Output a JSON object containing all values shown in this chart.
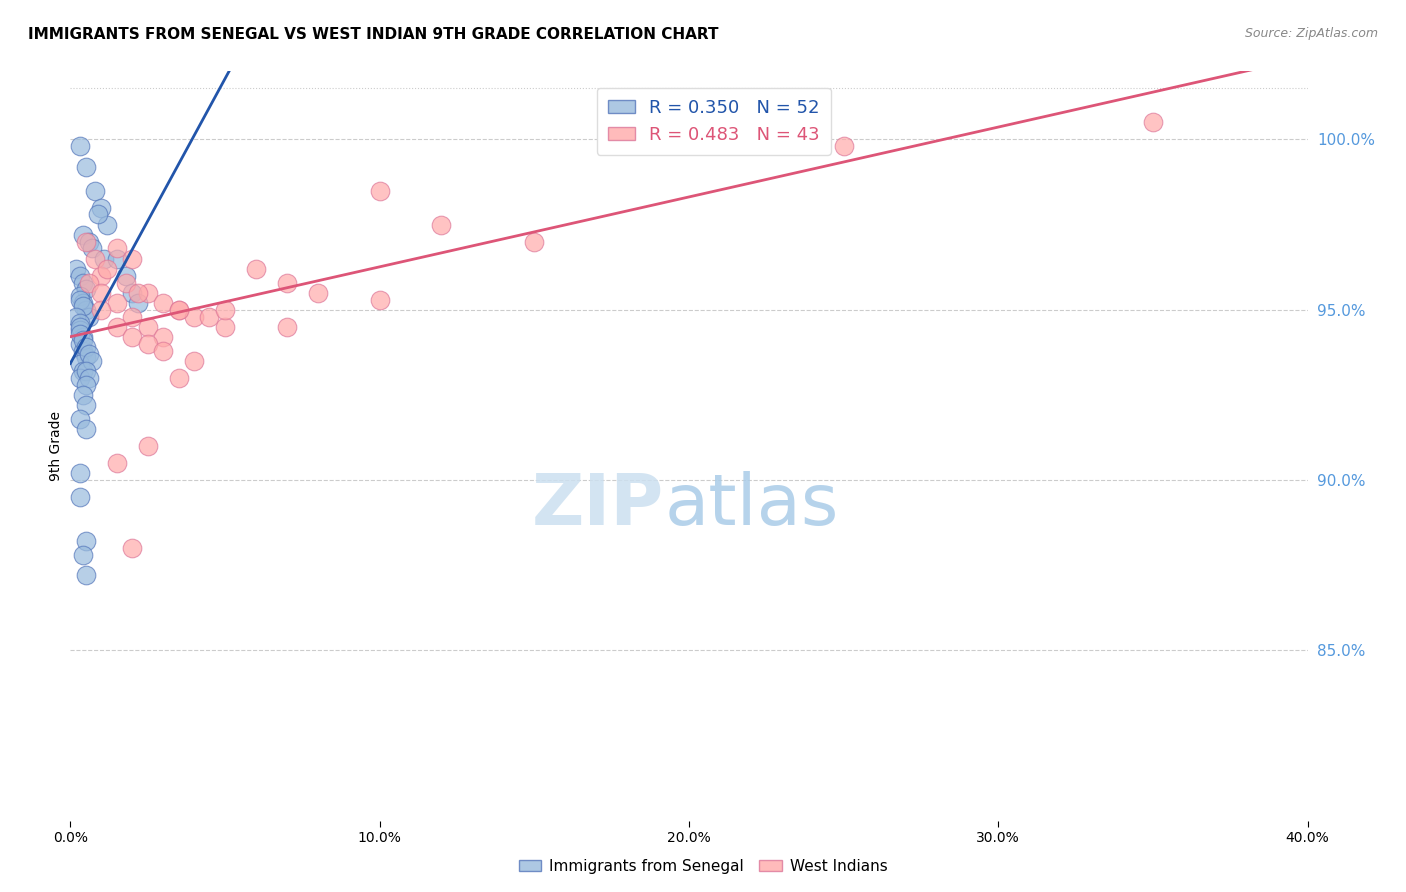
{
  "title": "IMMIGRANTS FROM SENEGAL VS WEST INDIAN 9TH GRADE CORRELATION CHART",
  "source": "Source: ZipAtlas.com",
  "ylabel": "9th Grade",
  "watermark_zip": "ZIP",
  "watermark_atlas": "atlas",
  "xmin": 0.0,
  "xmax": 40.0,
  "ymin": 80.0,
  "ymax": 102.0,
  "yticks": [
    85.0,
    90.0,
    95.0,
    100.0
  ],
  "xticks": [
    0.0,
    10.0,
    20.0,
    30.0,
    40.0
  ],
  "xtick_labels": [
    "0.0%",
    "10.0%",
    "20.0%",
    "30.0%",
    "40.0%"
  ],
  "legend_blue_r": 0.35,
  "legend_blue_n": 52,
  "legend_pink_r": 0.483,
  "legend_pink_n": 43,
  "blue_scatter_x": [
    0.3,
    0.5,
    0.8,
    1.0,
    1.2,
    0.4,
    0.6,
    0.7,
    0.9,
    1.1,
    0.2,
    0.3,
    0.4,
    0.5,
    0.3,
    0.4,
    0.5,
    0.6,
    0.3,
    0.4,
    0.2,
    0.3,
    0.3,
    0.4,
    0.3,
    0.4,
    0.5,
    0.3,
    0.4,
    0.3,
    0.3,
    0.3,
    0.4,
    0.5,
    0.6,
    0.7,
    1.5,
    1.8,
    2.0,
    2.2,
    0.5,
    0.6,
    0.5,
    0.4,
    0.5,
    0.3,
    0.5,
    0.3,
    0.3,
    0.5,
    0.4,
    0.5
  ],
  "blue_scatter_y": [
    99.8,
    99.2,
    98.5,
    98.0,
    97.5,
    97.2,
    97.0,
    96.8,
    97.8,
    96.5,
    96.2,
    96.0,
    95.8,
    95.6,
    95.4,
    95.2,
    95.0,
    94.8,
    95.3,
    95.1,
    94.8,
    94.6,
    94.4,
    94.2,
    94.0,
    93.8,
    93.6,
    93.4,
    93.2,
    93.0,
    94.5,
    94.3,
    94.1,
    93.9,
    93.7,
    93.5,
    96.5,
    96.0,
    95.5,
    95.2,
    93.2,
    93.0,
    92.8,
    92.5,
    92.2,
    91.8,
    91.5,
    90.2,
    89.5,
    88.2,
    87.8,
    87.2
  ],
  "pink_scatter_x": [
    0.5,
    0.8,
    1.0,
    1.2,
    1.5,
    2.0,
    2.5,
    3.0,
    3.5,
    4.0,
    5.0,
    6.0,
    7.0,
    8.0,
    10.0,
    12.0,
    15.0,
    20.0,
    25.0,
    35.0,
    0.6,
    1.0,
    1.5,
    2.0,
    2.5,
    3.0,
    1.8,
    2.2,
    3.5,
    4.5,
    1.0,
    1.5,
    2.0,
    2.5,
    3.0,
    4.0,
    5.0,
    7.0,
    10.0,
    3.5,
    2.5,
    1.5,
    2.0
  ],
  "pink_scatter_y": [
    97.0,
    96.5,
    96.0,
    96.2,
    96.8,
    96.5,
    95.5,
    95.2,
    95.0,
    94.8,
    94.5,
    96.2,
    95.8,
    95.5,
    95.3,
    97.5,
    97.0,
    100.2,
    99.8,
    100.5,
    95.8,
    95.5,
    95.2,
    94.8,
    94.5,
    94.2,
    95.8,
    95.5,
    95.0,
    94.8,
    95.0,
    94.5,
    94.2,
    94.0,
    93.8,
    93.5,
    95.0,
    94.5,
    98.5,
    93.0,
    91.0,
    90.5,
    88.0
  ],
  "blue_color": "#99BBDD",
  "pink_color": "#FFAAAA",
  "blue_edge_color": "#5577BB",
  "pink_edge_color": "#DD7799",
  "blue_line_color": "#2255AA",
  "pink_line_color": "#DD5577",
  "grid_color": "#CCCCCC",
  "right_axis_color": "#5599DD",
  "title_fontsize": 11,
  "source_fontsize": 9,
  "marker_size": 180
}
